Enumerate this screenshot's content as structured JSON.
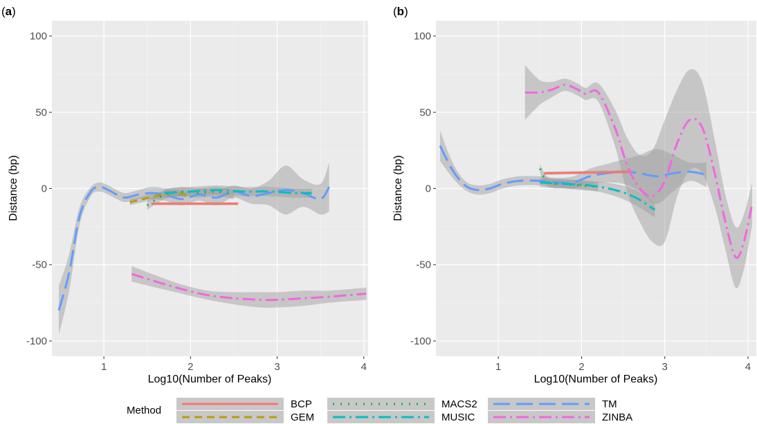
{
  "colors": {
    "BCP": "#f8766d",
    "GEM": "#b79f00",
    "MACS2": "#00ba38",
    "MUSIC": "#00bfc4",
    "TM": "#619cff",
    "ZINBA": "#f564e3"
  },
  "legend": {
    "title": "Method",
    "entries": [
      "BCP",
      "GEM",
      "MACS2",
      "MUSIC",
      "TM",
      "ZINBA"
    ],
    "placement": "bottom"
  },
  "chart_data": [
    {
      "type": "line",
      "tag_open": "(",
      "tag_letter": "a",
      "tag_close": ")",
      "xlabel": "Log10(Number of Peaks)",
      "ylabel": "Distance (bp)",
      "xlim": [
        0.4,
        4.05
      ],
      "ylim": [
        -110,
        110
      ],
      "xticks": [
        1,
        2,
        3,
        4
      ],
      "yticks": [
        100,
        50,
        0,
        -50,
        -100
      ],
      "grid": true,
      "series": [
        {
          "name": "TM",
          "style": "longdash",
          "x": [
            0.48,
            0.6,
            0.72,
            0.85,
            0.95,
            1.05,
            1.15,
            1.25,
            1.4,
            1.55,
            1.7,
            1.9,
            2.1,
            2.3,
            2.5,
            2.7,
            2.9,
            3.1,
            3.3,
            3.5,
            3.6
          ],
          "y": [
            -80,
            -55,
            -18,
            -2,
            1,
            -1,
            -4,
            -6,
            -4,
            -3,
            -4,
            -7,
            -4,
            -6,
            -2,
            -5,
            -3,
            -1,
            -3,
            -7,
            1
          ],
          "band": [
            16,
            12,
            6,
            3,
            3,
            3,
            3,
            3,
            3,
            4,
            4,
            4,
            4,
            5,
            4,
            5,
            8,
            16,
            9,
            10,
            16
          ]
        },
        {
          "name": "GEM",
          "style": "dashed",
          "x": [
            1.3,
            1.45,
            1.6,
            1.8,
            1.95
          ],
          "y": [
            -9,
            -7,
            -5,
            -3,
            -4
          ],
          "band": [
            2,
            2,
            2,
            2,
            2
          ]
        },
        {
          "name": "BCP",
          "style": "solid",
          "x": [
            1.55,
            2.55
          ],
          "y": [
            -10,
            -10
          ],
          "band": [
            1,
            1
          ]
        },
        {
          "name": "MACS2",
          "style": "dotted",
          "x": [
            1.5,
            1.7,
            1.9,
            2.1,
            2.3,
            2.5
          ],
          "y": [
            -11,
            -4,
            -2,
            -3,
            -2,
            -4
          ],
          "band": [
            3,
            3,
            3,
            3,
            3,
            3
          ]
        },
        {
          "name": "MUSIC",
          "style": "dotdash",
          "x": [
            1.7,
            2.0,
            2.3,
            2.6,
            2.9,
            3.2,
            3.4
          ],
          "y": [
            -3,
            -2,
            -1,
            -2,
            -2,
            -3,
            -3
          ],
          "band": [
            3,
            3,
            3,
            3,
            3,
            3,
            3
          ]
        },
        {
          "name": "ZINBA",
          "style": "dotdash",
          "x": [
            1.32,
            1.6,
            1.9,
            2.2,
            2.5,
            2.8,
            3.0,
            3.3,
            3.6,
            4.03
          ],
          "y": [
            -56,
            -61,
            -66,
            -70,
            -72,
            -73,
            -73,
            -72,
            -71,
            -69
          ],
          "band": [
            5,
            4,
            3,
            3,
            4,
            5,
            5,
            5,
            4,
            4
          ]
        }
      ]
    },
    {
      "type": "line",
      "tag_open": "(",
      "tag_letter": "b",
      "tag_close": ")",
      "xlabel": "Log10(Number of Peaks)",
      "ylabel": "Distance (bp)",
      "xlim": [
        0.25,
        4.1
      ],
      "ylim": [
        -110,
        110
      ],
      "xticks": [
        1,
        2,
        3,
        4
      ],
      "yticks": [
        100,
        50,
        0,
        -50,
        -100
      ],
      "grid": true,
      "series": [
        {
          "name": "TM",
          "style": "longdash",
          "x": [
            0.3,
            0.45,
            0.6,
            0.75,
            0.9,
            1.05,
            1.25,
            1.5,
            1.7,
            1.9,
            2.1,
            2.3,
            2.5,
            2.7,
            2.9,
            3.1,
            3.3,
            3.5
          ],
          "y": [
            28,
            12,
            2,
            -1,
            0,
            3,
            5,
            5,
            4,
            4,
            8,
            10,
            11,
            10,
            8,
            10,
            11,
            9
          ],
          "band": [
            10,
            5,
            3,
            3,
            3,
            3,
            3,
            3,
            3,
            4,
            5,
            6,
            8,
            12,
            18,
            12,
            6,
            8
          ]
        },
        {
          "name": "BCP",
          "style": "solid",
          "x": [
            1.55,
            2.6
          ],
          "y": [
            10,
            11
          ],
          "band": [
            1,
            1
          ]
        },
        {
          "name": "MACS2",
          "style": "dotted",
          "x": [
            1.5,
            1.6,
            1.8,
            2.0,
            2.2
          ],
          "y": [
            13,
            4,
            3,
            2,
            1
          ],
          "band": [
            3,
            3,
            3,
            3,
            3
          ]
        },
        {
          "name": "MUSIC",
          "style": "dotdash",
          "x": [
            1.5,
            1.8,
            2.1,
            2.4,
            2.65,
            2.88
          ],
          "y": [
            4,
            3,
            2,
            -1,
            -6,
            -14
          ],
          "band": [
            3,
            3,
            3,
            4,
            5,
            5
          ]
        },
        {
          "name": "ZINBA",
          "style": "dotdash",
          "x": [
            1.32,
            1.5,
            1.65,
            1.8,
            1.95,
            2.05,
            2.2,
            2.4,
            2.55,
            2.7,
            2.85,
            3.0,
            3.15,
            3.3,
            3.45,
            3.6,
            3.72,
            3.85,
            3.95,
            4.05
          ],
          "y": [
            63,
            63,
            65,
            68,
            65,
            62,
            63,
            40,
            15,
            0,
            -5,
            5,
            30,
            45,
            40,
            10,
            -20,
            -45,
            -35,
            -10
          ],
          "band": [
            18,
            8,
            5,
            4,
            4,
            4,
            6,
            12,
            18,
            22,
            30,
            40,
            35,
            33,
            30,
            22,
            18,
            20,
            18,
            14
          ]
        }
      ]
    }
  ]
}
